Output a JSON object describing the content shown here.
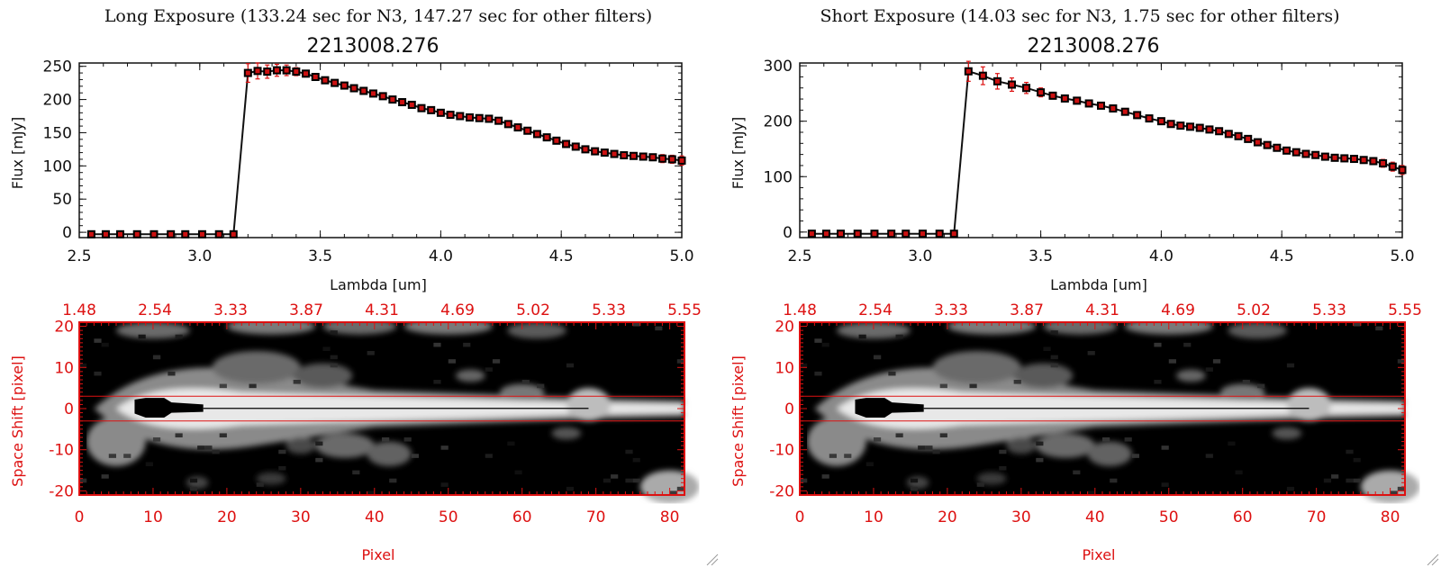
{
  "colors": {
    "axis": "#111111",
    "accent": "#dd1111",
    "marker": "#cc1111",
    "background": "#ffffff"
  },
  "resize_grip_icon": "resize-grip-icon",
  "chart_data": [
    {
      "panel": "left",
      "type": "line",
      "title": "Long Exposure (133.24 sec for N3, 147.27 sec for other filters)",
      "subtitle": "2213008.276",
      "xlabel": "Lambda [um]",
      "ylabel": "Flux [mJy]",
      "xlim": [
        2.5,
        5.0
      ],
      "ylim": [
        -8,
        255
      ],
      "xticks": [
        "2.5",
        "3.0",
        "3.5",
        "4.0",
        "4.5",
        "5.0"
      ],
      "yticks": [
        "0",
        "50",
        "100",
        "150",
        "200",
        "250"
      ],
      "x": [
        2.55,
        2.61,
        2.67,
        2.74,
        2.81,
        2.88,
        2.94,
        3.01,
        3.08,
        3.14,
        3.2,
        3.24,
        3.28,
        3.32,
        3.36,
        3.4,
        3.44,
        3.48,
        3.52,
        3.56,
        3.6,
        3.64,
        3.68,
        3.72,
        3.76,
        3.8,
        3.84,
        3.88,
        3.92,
        3.96,
        4.0,
        4.04,
        4.08,
        4.12,
        4.16,
        4.2,
        4.24,
        4.28,
        4.32,
        4.36,
        4.4,
        4.44,
        4.48,
        4.52,
        4.56,
        4.6,
        4.64,
        4.68,
        4.72,
        4.76,
        4.8,
        4.84,
        4.88,
        4.92,
        4.96,
        5.0
      ],
      "y": [
        -3,
        -3,
        -3,
        -3,
        -3,
        -3,
        -3,
        -3,
        -3,
        -3,
        240,
        243,
        242,
        244,
        244,
        242,
        239,
        234,
        229,
        225,
        221,
        217,
        213,
        209,
        205,
        200,
        196,
        192,
        187,
        184,
        180,
        177,
        175,
        173,
        172,
        171,
        168,
        163,
        158,
        153,
        148,
        143,
        138,
        133,
        129,
        125,
        122,
        120,
        118,
        116,
        115,
        114,
        113,
        111,
        110,
        108
      ],
      "yerr": [
        2,
        2,
        2,
        2,
        2,
        2,
        2,
        2,
        2,
        2,
        14,
        12,
        10,
        9,
        8,
        6,
        5,
        4,
        4,
        3,
        3,
        3,
        3,
        3,
        3,
        3,
        3,
        3,
        3,
        3,
        3,
        3,
        3,
        3,
        3,
        3,
        3,
        3,
        3,
        3,
        3,
        3,
        3,
        3,
        3,
        3,
        3,
        3,
        4,
        4,
        4,
        5,
        5,
        6,
        6,
        7
      ]
    },
    {
      "panel": "right",
      "type": "line",
      "title": "Short Exposure (14.03 sec for N3, 1.75 sec for other filters)",
      "subtitle": "2213008.276",
      "xlabel": "Lambda [um]",
      "ylabel": "Flux [mJy]",
      "xlim": [
        2.5,
        5.0
      ],
      "ylim": [
        -10,
        305
      ],
      "xticks": [
        "2.5",
        "3.0",
        "3.5",
        "4.0",
        "4.5",
        "5.0"
      ],
      "yticks": [
        "0",
        "100",
        "200",
        "300"
      ],
      "x": [
        2.55,
        2.61,
        2.67,
        2.74,
        2.81,
        2.88,
        2.94,
        3.01,
        3.08,
        3.14,
        3.2,
        3.26,
        3.32,
        3.38,
        3.44,
        3.5,
        3.55,
        3.6,
        3.65,
        3.7,
        3.75,
        3.8,
        3.85,
        3.9,
        3.95,
        4.0,
        4.04,
        4.08,
        4.12,
        4.16,
        4.2,
        4.24,
        4.28,
        4.32,
        4.36,
        4.4,
        4.44,
        4.48,
        4.52,
        4.56,
        4.6,
        4.64,
        4.68,
        4.72,
        4.76,
        4.8,
        4.84,
        4.88,
        4.92,
        4.96,
        5.0
      ],
      "y": [
        -3,
        -3,
        -3,
        -3,
        -3,
        -3,
        -3,
        -3,
        -3,
        -3,
        290,
        282,
        272,
        266,
        260,
        252,
        246,
        241,
        237,
        232,
        228,
        223,
        217,
        211,
        205,
        200,
        195,
        192,
        190,
        188,
        185,
        182,
        177,
        173,
        168,
        162,
        157,
        152,
        147,
        144,
        141,
        139,
        136,
        134,
        133,
        132,
        130,
        128,
        124,
        118,
        112
      ],
      "yerr": [
        2,
        2,
        2,
        2,
        2,
        2,
        2,
        2,
        2,
        2,
        18,
        16,
        14,
        12,
        10,
        8,
        6,
        5,
        5,
        4,
        4,
        4,
        4,
        4,
        4,
        4,
        4,
        4,
        4,
        4,
        4,
        4,
        4,
        4,
        4,
        4,
        4,
        4,
        4,
        4,
        4,
        4,
        4,
        4,
        4,
        5,
        5,
        6,
        7,
        8,
        8
      ]
    },
    {
      "panel": "left",
      "type": "heatmap",
      "xlabel": "Pixel",
      "ylabel": "Space Shift [pixel]",
      "xlim": [
        0,
        82
      ],
      "ylim": [
        -21,
        21
      ],
      "xticks": [
        "0",
        "10",
        "20",
        "30",
        "40",
        "50",
        "60",
        "70",
        "80"
      ],
      "yticks": [
        "-20",
        "-10",
        "0",
        "10",
        "20"
      ],
      "top_ticks": [
        "1.48",
        "2.54",
        "3.33",
        "3.87",
        "4.31",
        "4.69",
        "5.02",
        "5.33",
        "5.55"
      ],
      "aperture_rows": [
        -3,
        3
      ]
    },
    {
      "panel": "right",
      "type": "heatmap",
      "xlabel": "Pixel",
      "ylabel": "Space Shift [pixel]",
      "xlim": [
        0,
        82
      ],
      "ylim": [
        -21,
        21
      ],
      "xticks": [
        "0",
        "10",
        "20",
        "30",
        "40",
        "50",
        "60",
        "70",
        "80"
      ],
      "yticks": [
        "-20",
        "-10",
        "0",
        "10",
        "20"
      ],
      "top_ticks": [
        "1.48",
        "2.54",
        "3.33",
        "3.87",
        "4.31",
        "4.69",
        "5.02",
        "5.33",
        "5.55"
      ],
      "aperture_rows": [
        -3,
        3
      ]
    }
  ]
}
